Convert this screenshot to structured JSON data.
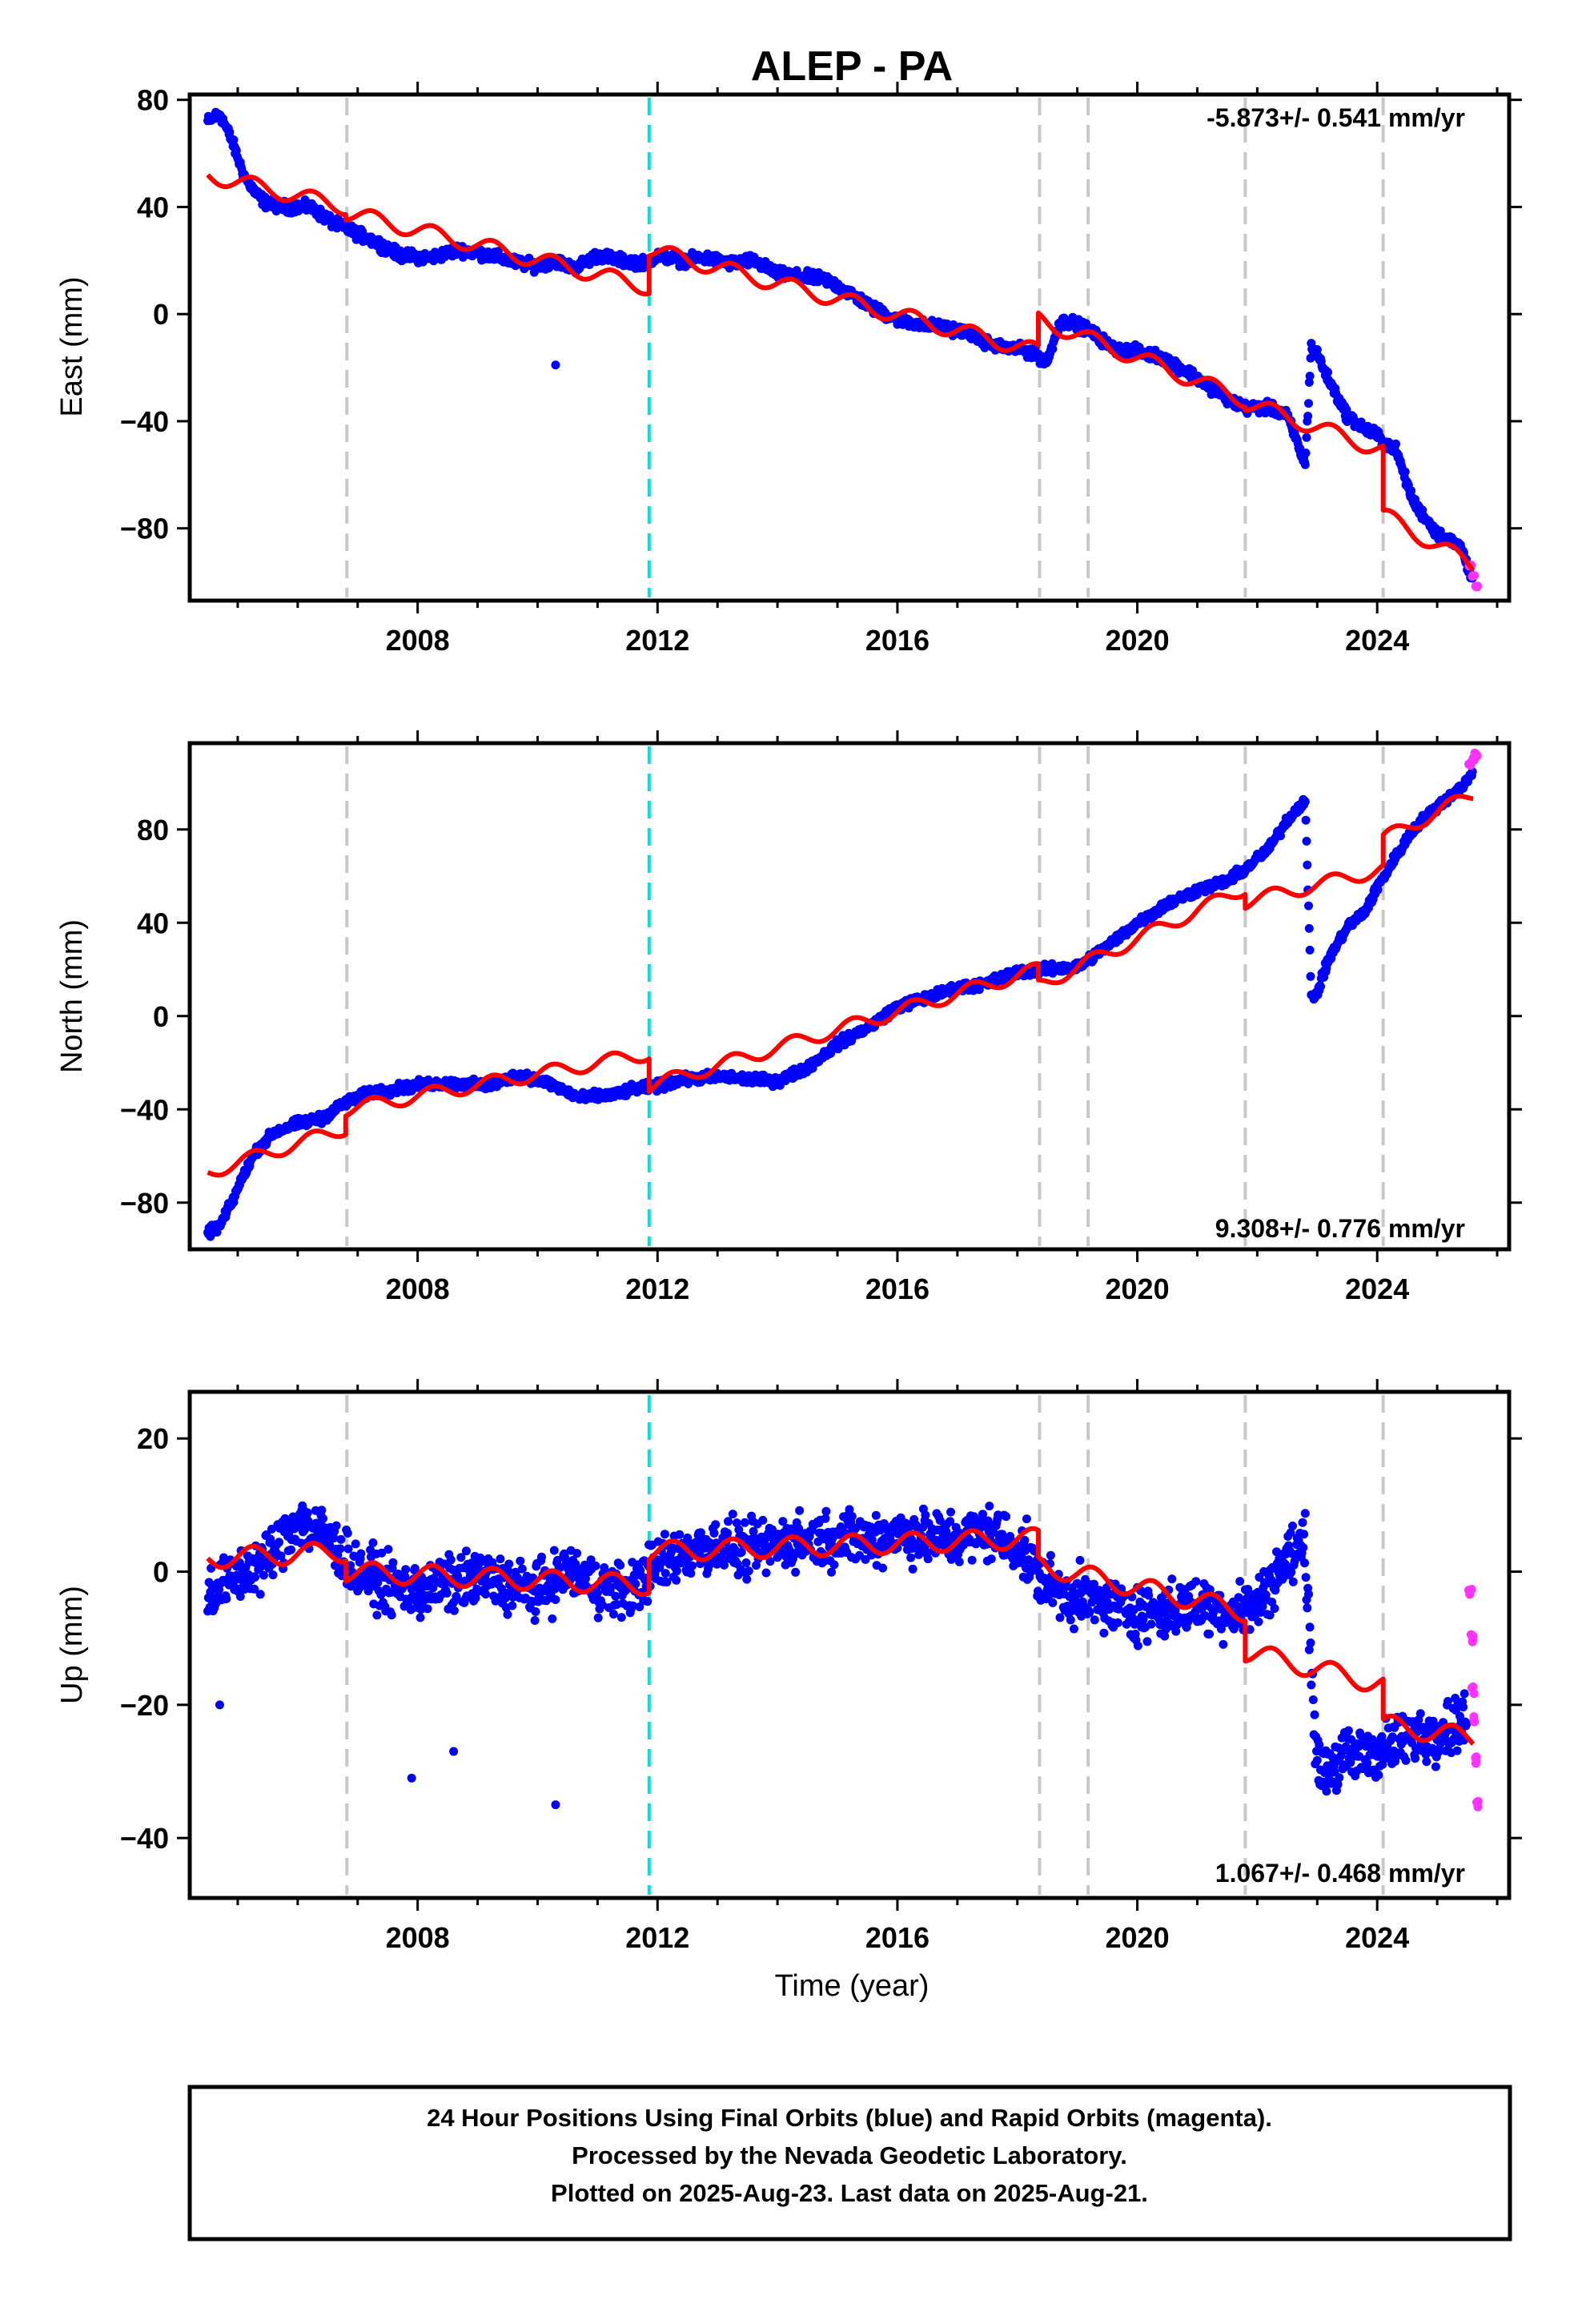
{
  "title": "ALEP - PA",
  "xlabel": "Time (year)",
  "footer": {
    "line1": "24 Hour Positions Using Final Orbits (blue) and Rapid Orbits (magenta).",
    "line2": "Processed by the Nevada Geodetic Laboratory.",
    "line3": "Plotted on 2025-Aug-23. Last data on 2025-Aug-21."
  },
  "colors": {
    "final_orbits": "#0000ff",
    "rapid_orbits": "#ff33ff",
    "model": "#ff0000",
    "equipment_change": "#c8c8c8",
    "earthquake": "#00e0e0"
  },
  "chart_data": [
    {
      "type": "scatter",
      "id": "east",
      "ylabel": "East (mm)",
      "rate_text": "-5.873+/- 0.541 mm/yr",
      "rate_position": "top-right",
      "xlim": [
        2004.2,
        2026.2
      ],
      "ylim": [
        -107,
        82
      ],
      "xticks": [
        2008,
        2012,
        2016,
        2020,
        2024
      ],
      "yticks": [
        -80,
        -40,
        0,
        40,
        80
      ],
      "grid": false,
      "series": [
        {
          "name": "Final Orbits (blue)",
          "x": [
            2004.5,
            2004.7,
            2004.9,
            2005.1,
            2005.3,
            2005.5,
            2005.8,
            2006.2,
            2006.6,
            2006.8,
            2007.0,
            2007.3,
            2007.7,
            2008.2,
            2008.7,
            2009.2,
            2009.7,
            2010.0,
            2010.3,
            2010.6,
            2011.0,
            2011.4,
            2011.8,
            2012.0,
            2012.4,
            2012.8,
            2013.2,
            2013.6,
            2014.0,
            2014.4,
            2014.8,
            2015.2,
            2015.6,
            2016.0,
            2016.4,
            2016.8,
            2017.2,
            2017.6,
            2018.0,
            2018.3,
            2018.5,
            2018.7,
            2018.9,
            2019.2,
            2019.6,
            2020.0,
            2020.4,
            2020.8,
            2021.2,
            2021.6,
            2021.8,
            2022.2,
            2022.5,
            2022.8,
            2022.9,
            2023.0,
            2023.2,
            2023.5,
            2023.8,
            2024.0,
            2024.1,
            2024.3,
            2024.6,
            2025.0,
            2025.4,
            2025.6
          ],
          "y": [
            72,
            75,
            65,
            52,
            45,
            41,
            40,
            40,
            34,
            32,
            30,
            27,
            22,
            21,
            24,
            22,
            19,
            18,
            20,
            17,
            22,
            20,
            19,
            22,
            20,
            21,
            19,
            20,
            15,
            14,
            13,
            8,
            2,
            -2,
            -4,
            -5,
            -7,
            -12,
            -13,
            -15,
            -18,
            -3,
            -3,
            -6,
            -13,
            -14,
            -16,
            -21,
            -27,
            -33,
            -35,
            -35,
            -38,
            -56,
            -12,
            -15,
            -25,
            -38,
            -43,
            -45,
            -48,
            -50,
            -70,
            -82,
            -87,
            -100
          ]
        },
        {
          "name": "Rapid Orbits (magenta)",
          "x": [
            2025.55,
            2025.6,
            2025.65
          ],
          "y": [
            -94,
            -98,
            -102
          ]
        }
      ],
      "outliers": [
        {
          "x": 2010.3,
          "y": -19
        }
      ],
      "model": {
        "name": "Model",
        "segments": [
          {
            "start": 2004.5,
            "end": 2006.8,
            "value_start": 52,
            "value_end": 40,
            "seasonal": 3
          },
          {
            "start": 2006.8,
            "end": 2011.86,
            "value_start": 38,
            "value_end": 10,
            "seasonal": 3
          },
          {
            "start": 2011.86,
            "end": 2018.35,
            "value_start": 24,
            "value_end": -14,
            "seasonal": 3
          },
          {
            "start": 2018.35,
            "end": 2021.8,
            "value_start": -2,
            "value_end": -32,
            "seasonal": 3
          },
          {
            "start": 2021.8,
            "end": 2024.1,
            "value_start": -33,
            "value_end": -51,
            "seasonal": 3
          },
          {
            "start": 2024.1,
            "end": 2025.6,
            "value_start": -75,
            "value_end": -94,
            "seasonal": 3
          }
        ]
      }
    },
    {
      "type": "scatter",
      "id": "north",
      "ylabel": "North (mm)",
      "rate_text": "9.308+/- 0.776 mm/yr",
      "rate_position": "bottom-right",
      "xlim": [
        2004.2,
        2026.2
      ],
      "ylim": [
        -100,
        117
      ],
      "xticks": [
        2008,
        2012,
        2016,
        2020,
        2024
      ],
      "yticks": [
        -80,
        -40,
        0,
        40,
        80
      ],
      "grid": false,
      "series": [
        {
          "name": "Final Orbits (blue)",
          "x": [
            2004.5,
            2004.7,
            2004.9,
            2005.1,
            2005.3,
            2005.6,
            2006.0,
            2006.4,
            2006.8,
            2007.2,
            2007.7,
            2008.2,
            2008.7,
            2009.2,
            2009.7,
            2010.2,
            2010.7,
            2011.2,
            2011.7,
            2012.0,
            2012.5,
            2013.0,
            2013.5,
            2014.0,
            2014.5,
            2015.0,
            2015.5,
            2016.0,
            2016.5,
            2017.0,
            2017.5,
            2018.0,
            2018.5,
            2019.0,
            2019.5,
            2020.0,
            2020.5,
            2021.0,
            2021.5,
            2021.8,
            2022.2,
            2022.5,
            2022.8,
            2022.9,
            2023.0,
            2023.2,
            2023.5,
            2023.8,
            2024.0,
            2024.3,
            2024.6,
            2025.0,
            2025.4,
            2025.6
          ],
          "y": [
            -93,
            -90,
            -80,
            -68,
            -58,
            -50,
            -46,
            -44,
            -37,
            -33,
            -31,
            -29,
            -29,
            -30,
            -25,
            -29,
            -35,
            -34,
            -31,
            -30,
            -27,
            -26,
            -27,
            -28,
            -22,
            -12,
            -5,
            4,
            8,
            12,
            14,
            19,
            20,
            21,
            30,
            40,
            48,
            54,
            58,
            63,
            72,
            84,
            93,
            8,
            10,
            25,
            38,
            45,
            55,
            68,
            80,
            90,
            98,
            104
          ]
        },
        {
          "name": "Rapid Orbits (magenta)",
          "x": [
            2025.55,
            2025.6,
            2025.65
          ],
          "y": [
            108,
            110,
            112
          ]
        }
      ],
      "outliers": [],
      "model": {
        "name": "Model",
        "segments": [
          {
            "start": 2004.5,
            "end": 2006.8,
            "value_start": -67,
            "value_end": -48,
            "seasonal": 3
          },
          {
            "start": 2006.8,
            "end": 2011.86,
            "value_start": -40,
            "value_end": -16,
            "seasonal": 3
          },
          {
            "start": 2011.86,
            "end": 2018.35,
            "value_start": -30,
            "value_end": 20,
            "seasonal": 3
          },
          {
            "start": 2018.35,
            "end": 2021.8,
            "value_start": 13,
            "value_end": 55,
            "seasonal": 3
          },
          {
            "start": 2021.8,
            "end": 2024.1,
            "value_start": 49,
            "value_end": 63,
            "seasonal": 3
          },
          {
            "start": 2024.1,
            "end": 2025.6,
            "value_start": 76,
            "value_end": 95,
            "seasonal": 3
          }
        ]
      }
    },
    {
      "type": "scatter",
      "id": "up",
      "ylabel": "Up (mm)",
      "xlabel": "Time (year)",
      "rate_text": "1.067+/- 0.468 mm/yr",
      "rate_position": "bottom-right",
      "xlim": [
        2004.2,
        2026.2
      ],
      "ylim": [
        -49,
        27
      ],
      "xticks": [
        2008,
        2012,
        2016,
        2020,
        2024
      ],
      "yticks": [
        -40,
        -20,
        0,
        20
      ],
      "grid": false,
      "series": [
        {
          "name": "Final Orbits (blue)",
          "x": [
            2004.5,
            2005.0,
            2005.5,
            2006.0,
            2006.5,
            2007.0,
            2007.5,
            2008.0,
            2008.5,
            2009.0,
            2009.5,
            2010.0,
            2010.5,
            2011.0,
            2011.5,
            2012.0,
            2012.5,
            2013.0,
            2013.5,
            2014.0,
            2014.5,
            2015.0,
            2015.5,
            2016.0,
            2016.5,
            2017.0,
            2017.5,
            2018.0,
            2018.5,
            2019.0,
            2019.5,
            2020.0,
            2020.5,
            2021.0,
            2021.5,
            2022.0,
            2022.5,
            2022.8,
            2023.0,
            2023.5,
            2024.0,
            2024.5,
            2025.0,
            2025.5
          ],
          "y": [
            -3,
            -1,
            2,
            8,
            5,
            0,
            -2,
            -3,
            -2,
            -1,
            -2,
            -3,
            0,
            -2,
            -3,
            1,
            3,
            4,
            3,
            4,
            5,
            5,
            5,
            6,
            5,
            5,
            6,
            4,
            -2,
            -4,
            -5,
            -6,
            -6,
            -5,
            -6,
            -5,
            2,
            4,
            -30,
            -28,
            -27,
            -25,
            -24,
            -22
          ],
          "spread": 6
        },
        {
          "name": "Rapid Orbits (magenta)",
          "x": [
            2025.55,
            2025.58,
            2025.6,
            2025.62,
            2025.65,
            2025.68
          ],
          "y": [
            -3,
            -10,
            -18,
            -22,
            -28,
            -35
          ]
        }
      ],
      "outliers": [
        {
          "x": 2007.9,
          "y": -31
        },
        {
          "x": 2008.6,
          "y": -27
        },
        {
          "x": 2010.3,
          "y": -35
        },
        {
          "x": 2004.7,
          "y": -20
        }
      ],
      "model": {
        "name": "Model",
        "segments": [
          {
            "start": 2004.5,
            "end": 2006.8,
            "value_start": 2,
            "value_end": 3,
            "seasonal": 1.5
          },
          {
            "start": 2006.8,
            "end": 2011.86,
            "value_start": 0,
            "value_end": -2,
            "seasonal": 1.5
          },
          {
            "start": 2011.86,
            "end": 2018.35,
            "value_start": 3,
            "value_end": 5,
            "seasonal": 1.5
          },
          {
            "start": 2018.35,
            "end": 2021.8,
            "value_start": 1,
            "value_end": -6,
            "seasonal": 1.5
          },
          {
            "start": 2021.8,
            "end": 2024.1,
            "value_start": -12,
            "value_end": -17,
            "seasonal": 1.5
          },
          {
            "start": 2024.1,
            "end": 2025.6,
            "value_start": -23,
            "value_end": -25,
            "seasonal": 1.5
          }
        ]
      }
    }
  ],
  "events": {
    "equipment_change": [
      2006.82,
      2018.37,
      2019.18,
      2021.8,
      2024.1
    ],
    "earthquake": [
      2011.86
    ]
  }
}
